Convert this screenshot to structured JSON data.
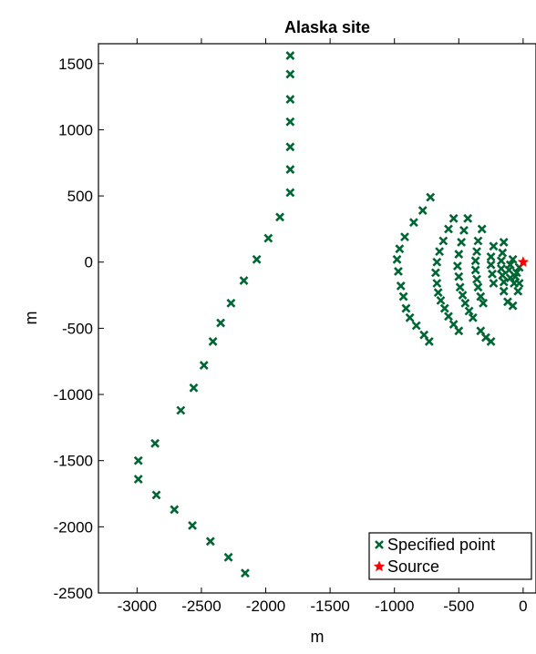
{
  "chart_data": {
    "type": "scatter",
    "title": "Alaska site",
    "xlabel": "m",
    "ylabel": "m",
    "xlim": [
      -3300,
      100
    ],
    "ylim": [
      -2500,
      1650
    ],
    "xticks": [
      -3000,
      -2500,
      -2000,
      -1500,
      -1000,
      -500,
      0
    ],
    "yticks": [
      1500,
      1000,
      500,
      0,
      -500,
      -1000,
      -1500,
      -2000,
      -2500
    ],
    "grid": false,
    "legend_position": "bottom-right",
    "series": [
      {
        "name": "Specified point",
        "marker": "x",
        "color": "#006633",
        "points": [
          [
            -1810,
            1560
          ],
          [
            -1810,
            1420
          ],
          [
            -1810,
            1230
          ],
          [
            -1810,
            1060
          ],
          [
            -1810,
            870
          ],
          [
            -1810,
            700
          ],
          [
            -1810,
            525
          ],
          [
            -1890,
            340
          ],
          [
            -1980,
            180
          ],
          [
            -2070,
            20
          ],
          [
            -2170,
            -140
          ],
          [
            -2270,
            -310
          ],
          [
            -2350,
            -460
          ],
          [
            -2410,
            -600
          ],
          [
            -2480,
            -780
          ],
          [
            -2560,
            -950
          ],
          [
            -2660,
            -1120
          ],
          [
            -2860,
            -1370
          ],
          [
            -2990,
            -1500
          ],
          [
            -2990,
            -1640
          ],
          [
            -2850,
            -1760
          ],
          [
            -2710,
            -1870
          ],
          [
            -2570,
            -1990
          ],
          [
            -2430,
            -2110
          ],
          [
            -2290,
            -2230
          ],
          [
            -2160,
            -2350
          ],
          [
            -720,
            490
          ],
          [
            -780,
            390
          ],
          [
            -850,
            300
          ],
          [
            -920,
            190
          ],
          [
            -960,
            100
          ],
          [
            -980,
            20
          ],
          [
            -970,
            -70
          ],
          [
            -950,
            -180
          ],
          [
            -930,
            -260
          ],
          [
            -910,
            -350
          ],
          [
            -880,
            -420
          ],
          [
            -830,
            -480
          ],
          [
            -770,
            -550
          ],
          [
            -730,
            -600
          ],
          [
            -540,
            330
          ],
          [
            -580,
            250
          ],
          [
            -620,
            160
          ],
          [
            -650,
            80
          ],
          [
            -670,
            0
          ],
          [
            -680,
            -80
          ],
          [
            -670,
            -160
          ],
          [
            -660,
            -230
          ],
          [
            -640,
            -290
          ],
          [
            -610,
            -350
          ],
          [
            -580,
            -410
          ],
          [
            -540,
            -470
          ],
          [
            -500,
            -520
          ],
          [
            -430,
            330
          ],
          [
            -460,
            240
          ],
          [
            -480,
            150
          ],
          [
            -500,
            60
          ],
          [
            -510,
            -30
          ],
          [
            -500,
            -110
          ],
          [
            -490,
            -190
          ],
          [
            -470,
            -250
          ],
          [
            -450,
            -310
          ],
          [
            -420,
            -370
          ],
          [
            -390,
            -420
          ],
          [
            -320,
            250
          ],
          [
            -350,
            160
          ],
          [
            -360,
            80
          ],
          [
            -370,
            10
          ],
          [
            -370,
            -60
          ],
          [
            -360,
            -130
          ],
          [
            -350,
            -190
          ],
          [
            -330,
            -260
          ],
          [
            -310,
            -310
          ],
          [
            -230,
            120
          ],
          [
            -250,
            40
          ],
          [
            -250,
            -20
          ],
          [
            -240,
            -90
          ],
          [
            -230,
            -160
          ],
          [
            -150,
            150
          ],
          [
            -160,
            70
          ],
          [
            -170,
            10
          ],
          [
            -170,
            -50
          ],
          [
            -160,
            -100
          ],
          [
            -150,
            -150
          ],
          [
            -80,
            20
          ],
          [
            -100,
            -20
          ],
          [
            -110,
            -60
          ],
          [
            -100,
            -120
          ],
          [
            -70,
            -160
          ],
          [
            -30,
            -40
          ],
          [
            -50,
            -80
          ],
          [
            -60,
            -110
          ],
          [
            -330,
            -520
          ],
          [
            -290,
            -570
          ],
          [
            -250,
            -600
          ],
          [
            -150,
            -220
          ],
          [
            -120,
            -300
          ],
          [
            -80,
            -330
          ],
          [
            -40,
            -220
          ],
          [
            -30,
            -160
          ]
        ]
      },
      {
        "name": "Source",
        "marker": "star",
        "color": "#ff0000",
        "points": [
          [
            0,
            0
          ]
        ]
      }
    ]
  }
}
